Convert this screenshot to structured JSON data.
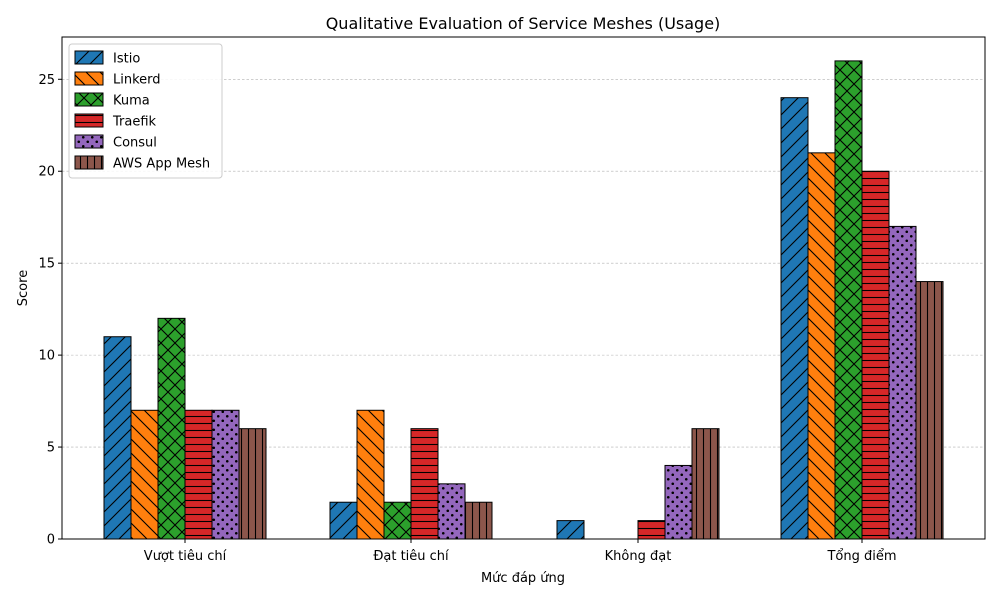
{
  "chart_data": {
    "type": "bar",
    "title": "Qualitative Evaluation of Service Meshes (Usage)",
    "xlabel": "Mức đáp ứng",
    "ylabel": "Score",
    "categories": [
      "Vượt tiêu chí",
      "Đạt tiêu chí",
      "Không đạt",
      "Tổng điểm"
    ],
    "ylim": [
      0,
      27.3
    ],
    "yticks": [
      0,
      5,
      10,
      15,
      20,
      25
    ],
    "grid": "y-dashed",
    "legend_position": "top-left",
    "series": [
      {
        "name": "Istio",
        "color": "#1f77b4",
        "hatch": "diagonal-forward",
        "values": [
          11,
          2,
          1,
          24
        ]
      },
      {
        "name": "Linkerd",
        "color": "#ff7f0e",
        "hatch": "diagonal-back",
        "values": [
          7,
          7,
          0,
          21
        ]
      },
      {
        "name": "Kuma",
        "color": "#2ca02c",
        "hatch": "cross",
        "values": [
          12,
          2,
          0,
          26
        ]
      },
      {
        "name": "Traefik",
        "color": "#d62728",
        "hatch": "horizontal",
        "values": [
          7,
          6,
          1,
          20
        ]
      },
      {
        "name": "Consul",
        "color": "#9467bd",
        "hatch": "dots",
        "values": [
          7,
          3,
          4,
          17
        ]
      },
      {
        "name": "AWS App Mesh",
        "color": "#8c564b",
        "hatch": "vertical",
        "values": [
          6,
          2,
          6,
          14
        ]
      }
    ]
  }
}
